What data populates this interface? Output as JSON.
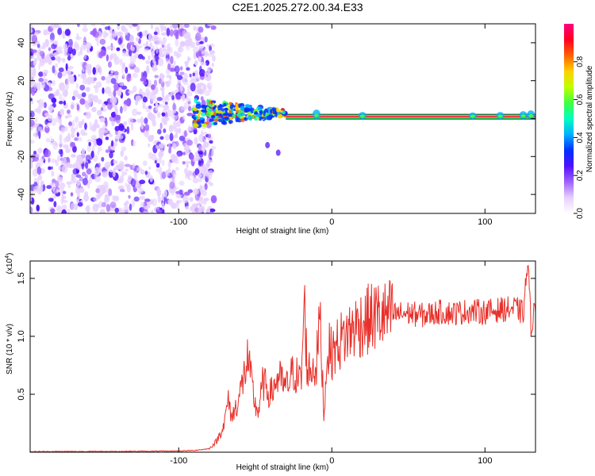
{
  "title": "C2E1.2025.272.00.34.E33",
  "colors": {
    "snr_line": "#e8302a",
    "frame": "#000000",
    "background": "#ffffff"
  },
  "chart_data": [
    {
      "type": "heatmap",
      "xlabel": "Height of straight line (km)",
      "ylabel": "Frequency (Hz)",
      "xlim": [
        -197,
        133
      ],
      "ylim": [
        -50,
        50
      ],
      "x_ticks": [
        "-100",
        "0",
        "100"
      ],
      "y_ticks": [
        "-40",
        "-20",
        "0",
        "20",
        "40"
      ],
      "colorbar": {
        "label": "Normalized spectral amplitude",
        "range": [
          0.0,
          1.0
        ],
        "ticks": [
          "0.0",
          "0.2",
          "0.4",
          "0.6",
          "0.8"
        ],
        "colors": [
          "#ffffff",
          "#e6d0ff",
          "#a060ff",
          "#5010ff",
          "#0030ff",
          "#00b0ff",
          "#00ffc0",
          "#40ff40",
          "#c0ff00",
          "#ffd000",
          "#ff6000",
          "#ff0020",
          "#ff0080"
        ]
      },
      "features": {
        "noise_region_x": [
          -197,
          -85
        ],
        "signal_line_freq_hz": 1.0,
        "stray_points": [
          [
            -42,
            -14
          ],
          [
            -35,
            -18
          ]
        ]
      }
    },
    {
      "type": "line",
      "xlabel": "Height of straight line (km)",
      "ylabel": "SNR (10 * v/v)",
      "multiplier_label": "(x10",
      "multiplier_exp": "4",
      "xlim": [
        -197,
        133
      ],
      "ylim": [
        0,
        16500
      ],
      "x_ticks": [
        "-100",
        "0",
        "100"
      ],
      "y_ticks": [
        "0.5",
        "1.0",
        "1.5"
      ],
      "series": [
        {
          "x": [
            -197,
            -180,
            -160,
            -140,
            -120,
            -100,
            -90,
            -80,
            -75,
            -70,
            -68,
            -65,
            -60,
            -55,
            -50,
            -48,
            -45,
            -40,
            -35,
            -30,
            -25,
            -20,
            -18,
            -16,
            -10,
            -8,
            -5,
            -3,
            0,
            5,
            10,
            15,
            20,
            25,
            30,
            35,
            40,
            50,
            60,
            70,
            80,
            90,
            100,
            110,
            120,
            125,
            128,
            130,
            133
          ],
          "y": [
            50,
            60,
            60,
            70,
            80,
            100,
            150,
            300,
            1000,
            2500,
            4500,
            3000,
            5000,
            8000,
            4000,
            3500,
            6000,
            5000,
            6500,
            5500,
            7000,
            6000,
            13000,
            7000,
            7500,
            12000,
            3000,
            9000,
            8500,
            9500,
            10200,
            10800,
            11200,
            11500,
            11800,
            11700,
            11900,
            12000,
            11800,
            12100,
            12000,
            12200,
            12100,
            12300,
            12400,
            12000,
            16500,
            11000,
            12500
          ]
        }
      ]
    }
  ]
}
